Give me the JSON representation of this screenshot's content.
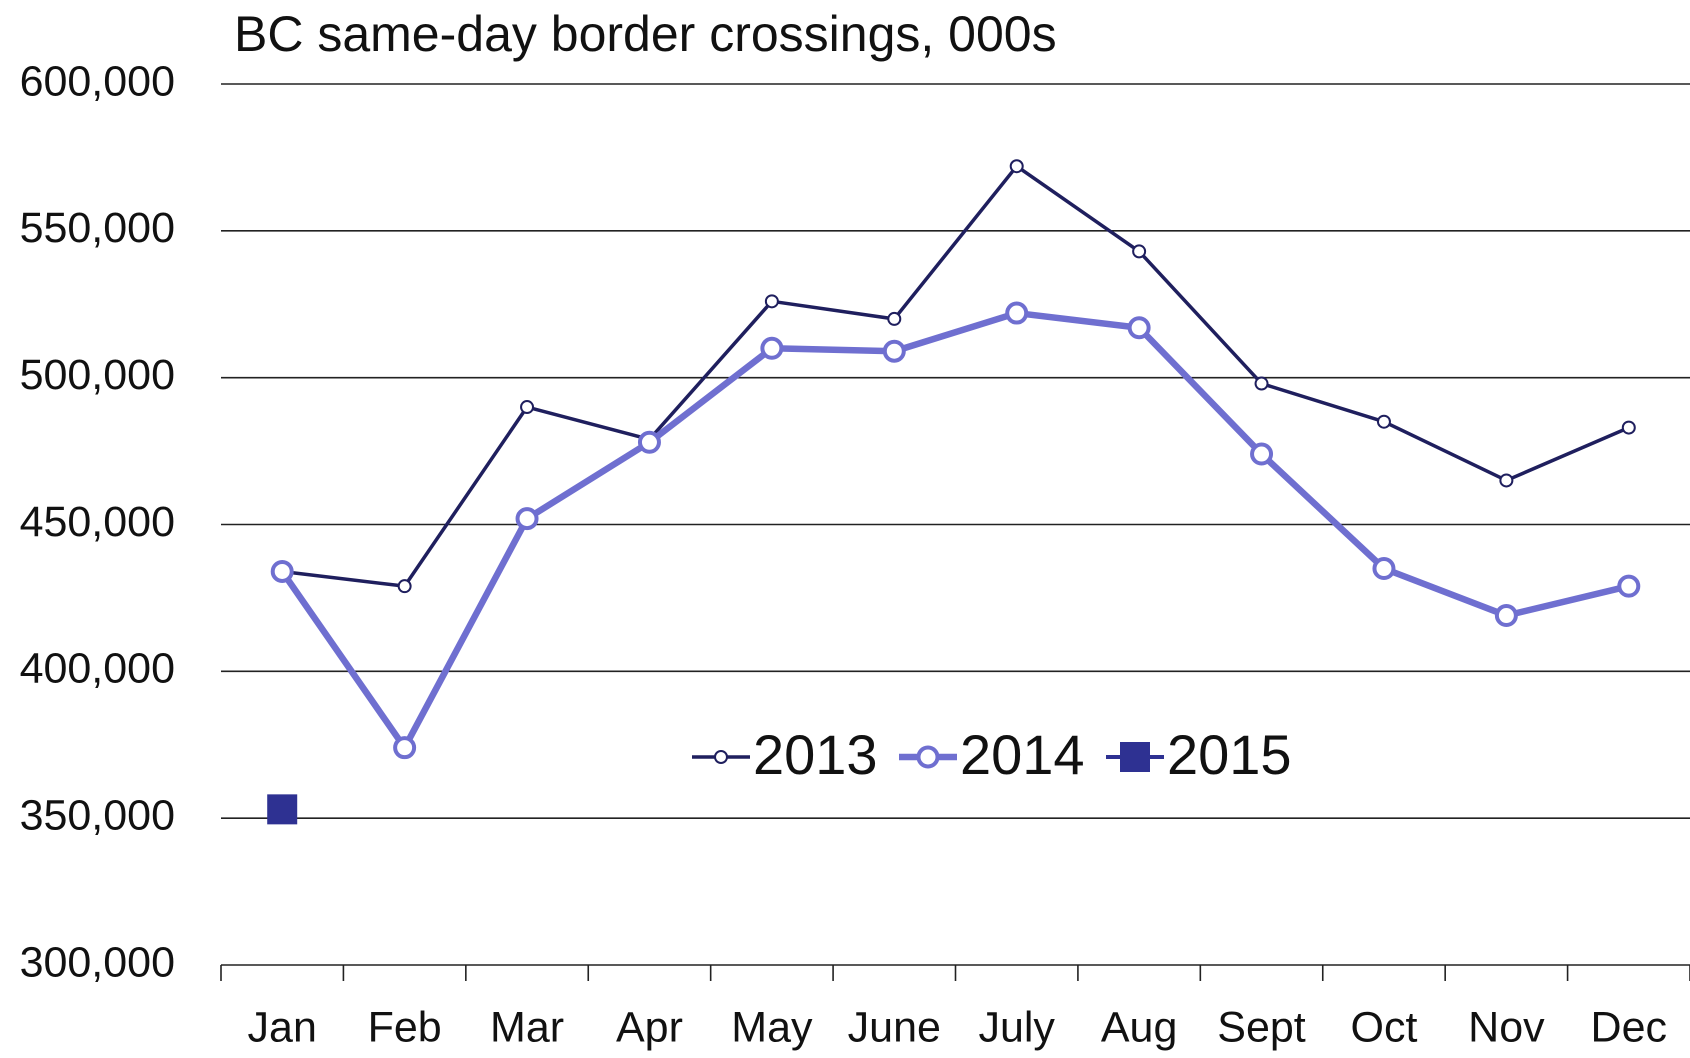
{
  "chart_data": {
    "type": "line",
    "title": "BC same-day border crossings, 000s",
    "categories": [
      "Jan",
      "Feb",
      "Mar",
      "Apr",
      "May",
      "June",
      "July",
      "Aug",
      "Sept",
      "Oct",
      "Nov",
      "Dec"
    ],
    "series": [
      {
        "name": "2013",
        "color": "#1f1f5e",
        "marker": "circle",
        "values": [
          434000,
          429000,
          490000,
          479000,
          526000,
          520000,
          572000,
          543000,
          498000,
          485000,
          465000,
          483000
        ]
      },
      {
        "name": "2014",
        "color": "#6f6fd0",
        "marker": "circle",
        "values": [
          434000,
          374000,
          452000,
          478000,
          510000,
          509000,
          522000,
          517000,
          474000,
          435000,
          419000,
          429000
        ]
      },
      {
        "name": "2015",
        "color": "#2e3192",
        "marker": "square",
        "values": [
          353000,
          null,
          null,
          null,
          null,
          null,
          null,
          null,
          null,
          null,
          null,
          null
        ]
      }
    ],
    "ylim": [
      300000,
      600000
    ],
    "yticks": [
      {
        "value": 300000,
        "label": "300,000"
      },
      {
        "value": 350000,
        "label": "350,000"
      },
      {
        "value": 400000,
        "label": "400,000"
      },
      {
        "value": 450000,
        "label": "450,000"
      },
      {
        "value": 500000,
        "label": "500,000"
      },
      {
        "value": 550000,
        "label": "550,000"
      },
      {
        "value": 600000,
        "label": "600,000"
      }
    ],
    "grid": true,
    "legend": "center"
  }
}
